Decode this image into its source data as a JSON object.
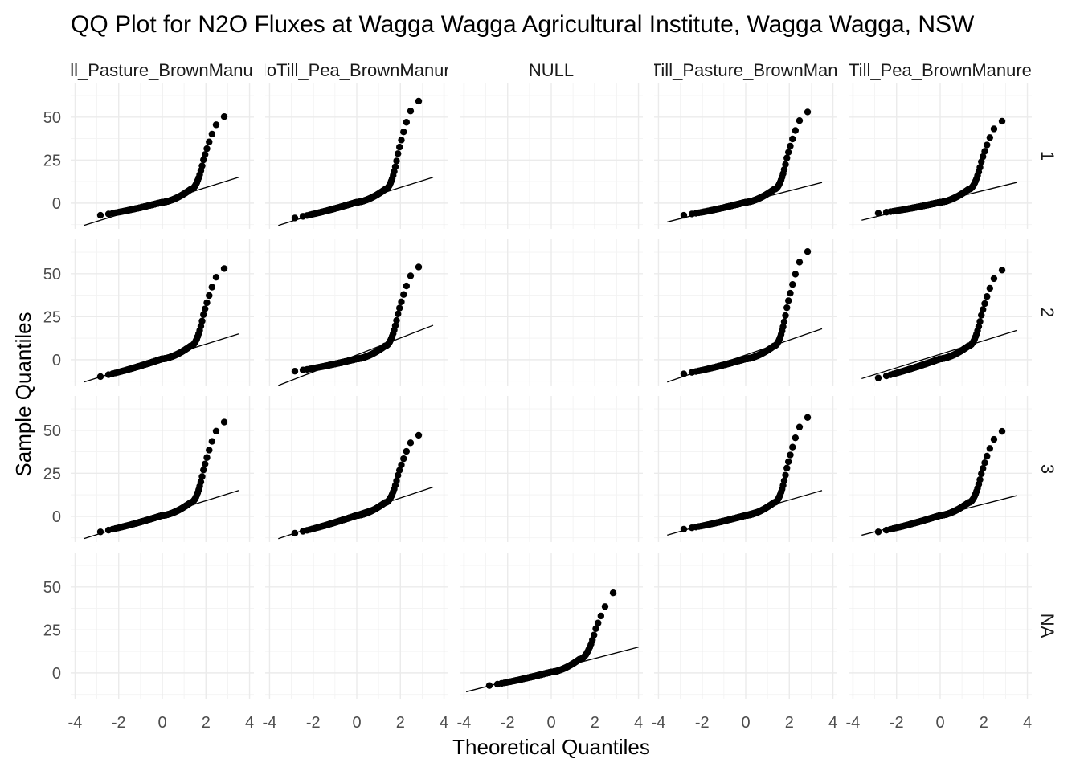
{
  "chart_data": {
    "type": "scatter",
    "title": "QQ Plot for N2O Fluxes at Wagga Wagga Agricultural Institute, Wagga Wagga, NSW",
    "xlabel": "Theoretical Quantiles",
    "ylabel": "Sample Quantiles",
    "xlim": [
      -4.2,
      4.2
    ],
    "ylim": [
      -15,
      70
    ],
    "x_ticks": [
      -4,
      -2,
      0,
      2,
      4
    ],
    "y_ticks": [
      0,
      25,
      50
    ],
    "grid": true,
    "col_facets": [
      "Till_Pasture_BrownManure",
      "NoTill_Pea_BrownManure",
      "NULL",
      "NoTill_Pasture_BrownManure",
      "Till_Pea_BrownManure"
    ],
    "row_facets": [
      "1",
      "2",
      "3",
      "NA"
    ],
    "panels": [
      {
        "col": 0,
        "row": 0,
        "min": -8.5,
        "max": 55,
        "line_y": [
          -13,
          15
        ],
        "xr": [
          -3.6,
          3.5
        ]
      },
      {
        "col": 1,
        "row": 0,
        "min": -10.5,
        "max": 65,
        "line_y": [
          -13,
          15
        ],
        "xr": [
          -3.6,
          3.5
        ]
      },
      {
        "col": 3,
        "row": 0,
        "min": -8.5,
        "max": 58,
        "line_y": [
          -11,
          12
        ],
        "xr": [
          -3.6,
          3.5
        ]
      },
      {
        "col": 4,
        "row": 0,
        "min": -7,
        "max": 52,
        "line_y": [
          -10,
          12
        ],
        "xr": [
          -3.6,
          3.5
        ]
      },
      {
        "col": 0,
        "row": 1,
        "min": -12,
        "max": 58,
        "line_y": [
          -13,
          15
        ],
        "xr": [
          -3.6,
          3.5
        ]
      },
      {
        "col": 1,
        "row": 1,
        "min": -8,
        "max": 59,
        "line_y": [
          -15,
          20
        ],
        "xr": [
          -3.6,
          3.5
        ]
      },
      {
        "col": 3,
        "row": 1,
        "min": -10,
        "max": 69,
        "line_y": [
          -13,
          18
        ],
        "xr": [
          -3.6,
          3.5
        ]
      },
      {
        "col": 4,
        "row": 1,
        "min": -13,
        "max": 57,
        "line_y": [
          -11,
          17
        ],
        "xr": [
          -3.6,
          3.5
        ]
      },
      {
        "col": 0,
        "row": 2,
        "min": -11,
        "max": 60,
        "line_y": [
          -13,
          15
        ],
        "xr": [
          -3.6,
          3.5
        ]
      },
      {
        "col": 1,
        "row": 2,
        "min": -12,
        "max": 51.5,
        "line_y": [
          -13,
          17
        ],
        "xr": [
          -3.6,
          3.5
        ]
      },
      {
        "col": 3,
        "row": 2,
        "min": -9,
        "max": 63,
        "line_y": [
          -11,
          15
        ],
        "xr": [
          -3.6,
          3.5
        ]
      },
      {
        "col": 4,
        "row": 2,
        "min": -11,
        "max": 54,
        "line_y": [
          -11,
          12
        ],
        "xr": [
          -3.6,
          3.5
        ]
      },
      {
        "col": 2,
        "row": 3,
        "min": -9.5,
        "max": 54,
        "line_y": [
          -11,
          15
        ],
        "xr": [
          -3.9,
          4.0
        ]
      }
    ]
  }
}
